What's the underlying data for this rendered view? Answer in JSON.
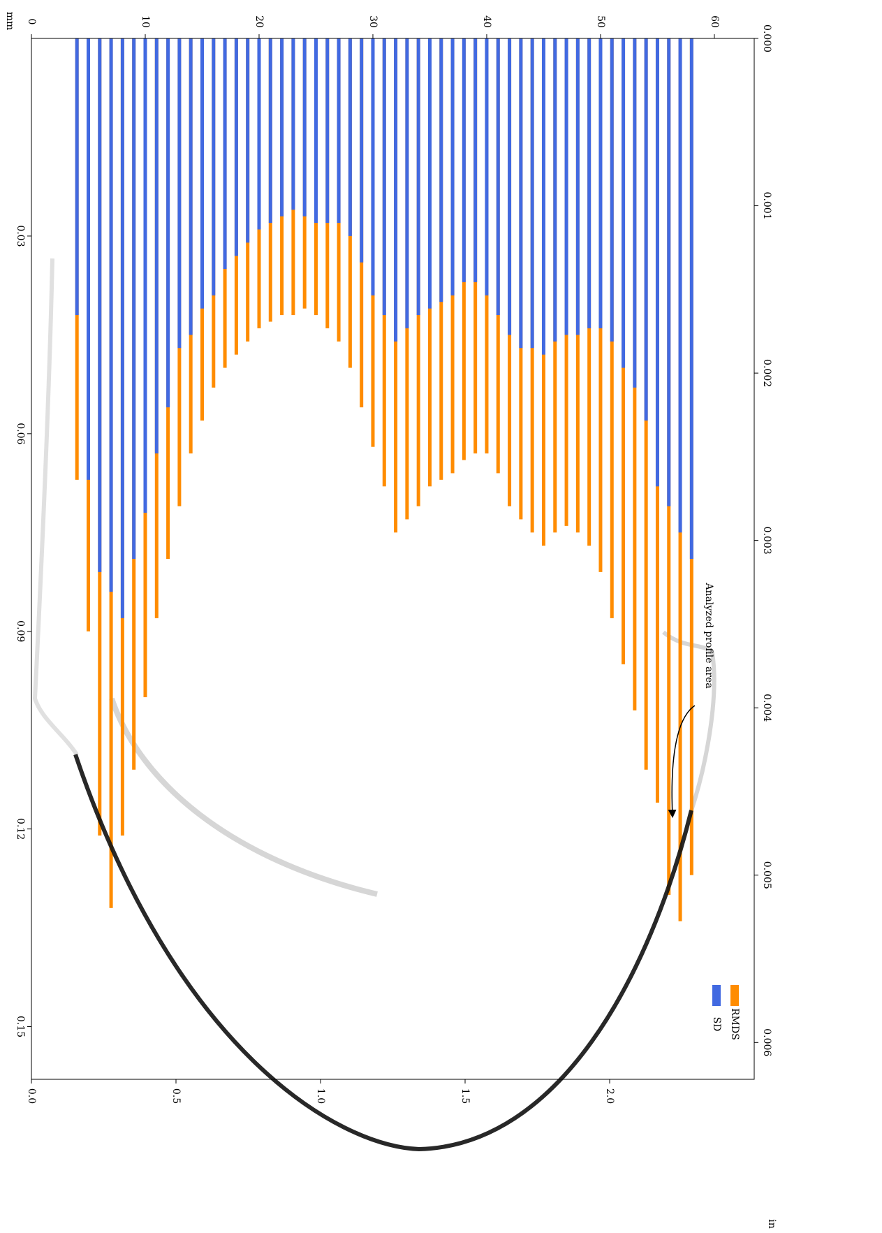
{
  "chart_data": {
    "type": "bar",
    "x_label": "mm",
    "x2_label": "in",
    "annotation": "Analyzed profile area",
    "x": [
      4,
      5,
      6,
      7,
      8,
      9,
      10,
      11,
      12,
      13,
      14,
      15,
      16,
      17,
      18,
      19,
      20,
      21,
      22,
      23,
      24,
      25,
      26,
      27,
      28,
      29,
      30,
      31,
      32,
      33,
      34,
      35,
      36,
      37,
      38,
      39,
      40,
      41,
      42,
      43,
      44,
      45,
      46,
      47,
      48,
      49,
      50,
      51,
      52,
      53,
      54,
      55,
      56,
      57,
      58
    ],
    "series": [
      {
        "name": "RMDS",
        "color": "#ff8c00",
        "values": [
          0.067,
          0.09,
          0.121,
          0.132,
          0.121,
          0.111,
          0.1,
          0.088,
          0.079,
          0.071,
          0.063,
          0.058,
          0.053,
          0.05,
          0.048,
          0.046,
          0.044,
          0.043,
          0.042,
          0.042,
          0.041,
          0.042,
          0.044,
          0.046,
          0.05,
          0.056,
          0.062,
          0.068,
          0.075,
          0.073,
          0.071,
          0.068,
          0.067,
          0.066,
          0.064,
          0.063,
          0.063,
          0.066,
          0.071,
          0.073,
          0.075,
          0.077,
          0.075,
          0.074,
          0.075,
          0.077,
          0.081,
          0.088,
          0.095,
          0.102,
          0.111,
          0.116,
          0.13,
          0.134,
          0.127
        ]
      },
      {
        "name": "SD",
        "color": "#4169e1",
        "values": [
          0.042,
          0.067,
          0.081,
          0.084,
          0.088,
          0.079,
          0.072,
          0.063,
          0.056,
          0.047,
          0.045,
          0.041,
          0.039,
          0.035,
          0.033,
          0.031,
          0.029,
          0.028,
          0.027,
          0.026,
          0.027,
          0.028,
          0.028,
          0.028,
          0.03,
          0.034,
          0.039,
          0.042,
          0.046,
          0.044,
          0.042,
          0.041,
          0.04,
          0.039,
          0.037,
          0.037,
          0.039,
          0.042,
          0.045,
          0.047,
          0.047,
          0.048,
          0.046,
          0.045,
          0.045,
          0.044,
          0.044,
          0.046,
          0.05,
          0.053,
          0.058,
          0.068,
          0.071,
          0.075,
          0.079
        ]
      }
    ],
    "xlim": [
      0,
      63.5
    ],
    "xticks": [
      0,
      10,
      20,
      30,
      40,
      50,
      60
    ],
    "x2lim": [
      0,
      2.5
    ],
    "x2ticks": [
      {
        "value": 0,
        "label": "0.0"
      },
      0.5,
      {
        "value": 1,
        "label": "1.0"
      },
      1.5,
      {
        "value": 2,
        "label": "2.0"
      }
    ],
    "ylim": [
      0,
      0.158
    ],
    "yticks": [
      0.03,
      0.06,
      0.09,
      0.12,
      0.15
    ],
    "y2lim": [
      0,
      0.00622
    ],
    "y2ticks": [
      {
        "value": 0,
        "label": "0.000"
      },
      0.001,
      0.002,
      0.003,
      0.004,
      0.005,
      0.006
    ],
    "legend": "lower right"
  }
}
